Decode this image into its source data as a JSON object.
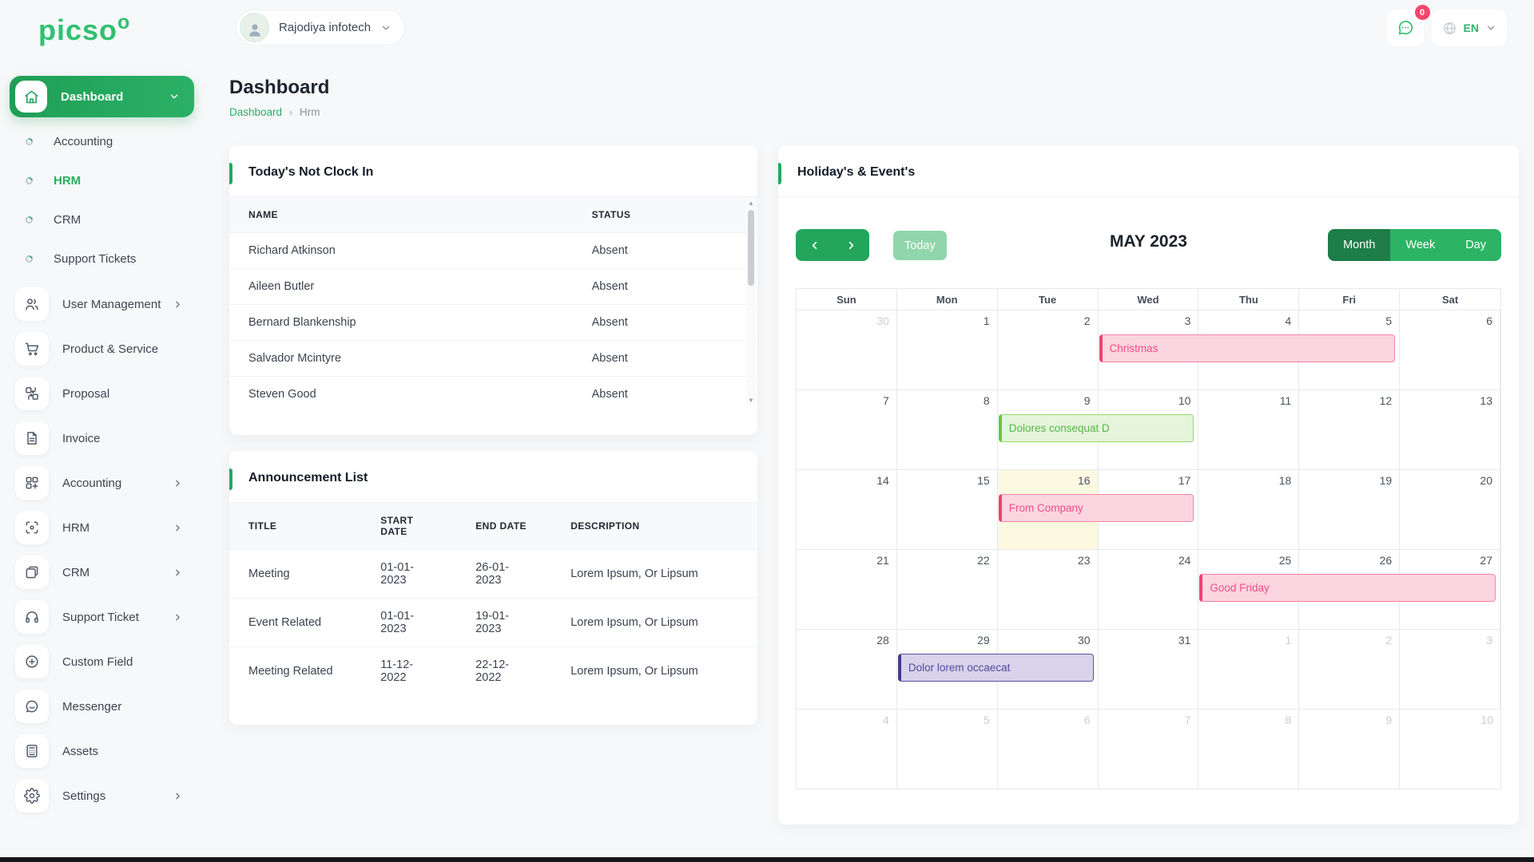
{
  "brand": {
    "name": "picso",
    "sup": "o",
    "color": "#2fc170"
  },
  "topbar": {
    "company": "Rajodiya infotech",
    "notification_badge": "0",
    "language": "EN"
  },
  "page": {
    "title": "Dashboard",
    "breadcrumb": [
      "Dashboard",
      "Hrm"
    ]
  },
  "sidebar": {
    "items": [
      {
        "label": "Dashboard",
        "icon": "home-icon",
        "active": true,
        "expanded": true,
        "sub": [
          {
            "label": "Accounting",
            "active": false
          },
          {
            "label": "HRM",
            "active": true
          },
          {
            "label": "CRM",
            "active": false
          },
          {
            "label": "Support Tickets",
            "active": false
          }
        ]
      },
      {
        "label": "User Management",
        "icon": "users-icon",
        "chevron": true
      },
      {
        "label": "Product & Service",
        "icon": "cart-icon",
        "chevron": false
      },
      {
        "label": "Proposal",
        "icon": "proposal-icon",
        "chevron": false
      },
      {
        "label": "Invoice",
        "icon": "invoice-icon",
        "chevron": false
      },
      {
        "label": "Accounting",
        "icon": "accounting-icon",
        "chevron": true
      },
      {
        "label": "HRM",
        "icon": "hrm-icon",
        "chevron": true
      },
      {
        "label": "CRM",
        "icon": "crm-icon",
        "chevron": true
      },
      {
        "label": "Support Ticket",
        "icon": "headset-icon",
        "chevron": true
      },
      {
        "label": "Custom Field",
        "icon": "plus-circle-icon",
        "chevron": false
      },
      {
        "label": "Messenger",
        "icon": "messenger-icon",
        "chevron": false
      },
      {
        "label": "Assets",
        "icon": "assets-icon",
        "chevron": false
      },
      {
        "label": "Settings",
        "icon": "gear-icon",
        "chevron": true
      }
    ]
  },
  "not_clock_in": {
    "title": "Today's Not Clock In",
    "columns": [
      "NAME",
      "STATUS"
    ],
    "rows": [
      [
        "Richard Atkinson",
        "Absent"
      ],
      [
        "Aileen Butler",
        "Absent"
      ],
      [
        "Bernard Blankenship",
        "Absent"
      ],
      [
        "Salvador Mcintyre",
        "Absent"
      ],
      [
        "Steven Good",
        "Absent"
      ]
    ]
  },
  "announcements": {
    "title": "Announcement List",
    "columns": [
      "TITLE",
      "START DATE",
      "END DATE",
      "DESCRIPTION"
    ],
    "rows": [
      [
        "Meeting",
        "01-01-2023",
        "26-01-2023",
        "Lorem Ipsum, Or Lipsum"
      ],
      [
        "Event Related",
        "01-01-2023",
        "19-01-2023",
        "Lorem Ipsum, Or Lipsum"
      ],
      [
        "Meeting Related",
        "11-12-2022",
        "22-12-2022",
        "Lorem Ipsum, Or Lipsum"
      ]
    ]
  },
  "calendar": {
    "title": "Holiday's & Event's",
    "toolbar": {
      "today": "Today",
      "month_label": "MAY 2023",
      "views": [
        "Month",
        "Week",
        "Day"
      ],
      "active_view": "Month"
    },
    "day_headers": [
      "Sun",
      "Mon",
      "Tue",
      "Wed",
      "Thu",
      "Fri",
      "Sat"
    ],
    "weeks": [
      {
        "days": [
          {
            "n": "30",
            "muted": true
          },
          {
            "n": "1"
          },
          {
            "n": "2"
          },
          {
            "n": "3"
          },
          {
            "n": "4"
          },
          {
            "n": "5"
          },
          {
            "n": "6"
          }
        ],
        "events": [
          {
            "label": "Christmas",
            "start": 3,
            "span": 3,
            "color": "pink"
          }
        ]
      },
      {
        "days": [
          {
            "n": "7"
          },
          {
            "n": "8"
          },
          {
            "n": "9"
          },
          {
            "n": "10"
          },
          {
            "n": "11"
          },
          {
            "n": "12"
          },
          {
            "n": "13"
          }
        ],
        "events": [
          {
            "label": "Dolores consequat D",
            "start": 2,
            "span": 2,
            "color": "green"
          }
        ]
      },
      {
        "days": [
          {
            "n": "14"
          },
          {
            "n": "15"
          },
          {
            "n": "16",
            "today": true
          },
          {
            "n": "17"
          },
          {
            "n": "18"
          },
          {
            "n": "19"
          },
          {
            "n": "20"
          }
        ],
        "events": [
          {
            "label": "From Company",
            "start": 2,
            "span": 2,
            "color": "pink"
          }
        ]
      },
      {
        "days": [
          {
            "n": "21"
          },
          {
            "n": "22"
          },
          {
            "n": "23"
          },
          {
            "n": "24"
          },
          {
            "n": "25"
          },
          {
            "n": "26"
          },
          {
            "n": "27"
          }
        ],
        "events": [
          {
            "label": "Good Friday",
            "start": 4,
            "span": 3,
            "color": "pink"
          }
        ]
      },
      {
        "days": [
          {
            "n": "28"
          },
          {
            "n": "29"
          },
          {
            "n": "30"
          },
          {
            "n": "31"
          },
          {
            "n": "1",
            "muted": true
          },
          {
            "n": "2",
            "muted": true
          },
          {
            "n": "3",
            "muted": true
          }
        ],
        "events": [
          {
            "label": "Dolor lorem occaecat",
            "start": 1,
            "span": 2,
            "color": "purple"
          }
        ]
      },
      {
        "days": [
          {
            "n": "4",
            "muted": true
          },
          {
            "n": "5",
            "muted": true
          },
          {
            "n": "6",
            "muted": true
          },
          {
            "n": "7",
            "muted": true
          },
          {
            "n": "8",
            "muted": true
          },
          {
            "n": "9",
            "muted": true
          },
          {
            "n": "10",
            "muted": true
          }
        ],
        "events": []
      }
    ],
    "event_colors": {
      "pink": {
        "bg": "#fbd5e0",
        "border": "#f884a5",
        "bar": "#f43f74",
        "text": "#ef4e82"
      },
      "green": {
        "bg": "#e5f4da",
        "border": "#95d870",
        "bar": "#66c83f",
        "text": "#58b64a"
      },
      "purple": {
        "bg": "#d8d3eb",
        "border": "#5e51a4",
        "bar": "#463a87",
        "text": "#56499c"
      }
    }
  },
  "colors": {
    "accent_green": "#23a35f",
    "active_link_green": "#21b25c",
    "badge_red": "#f5456c",
    "today_cell": "#fdf8e2"
  }
}
